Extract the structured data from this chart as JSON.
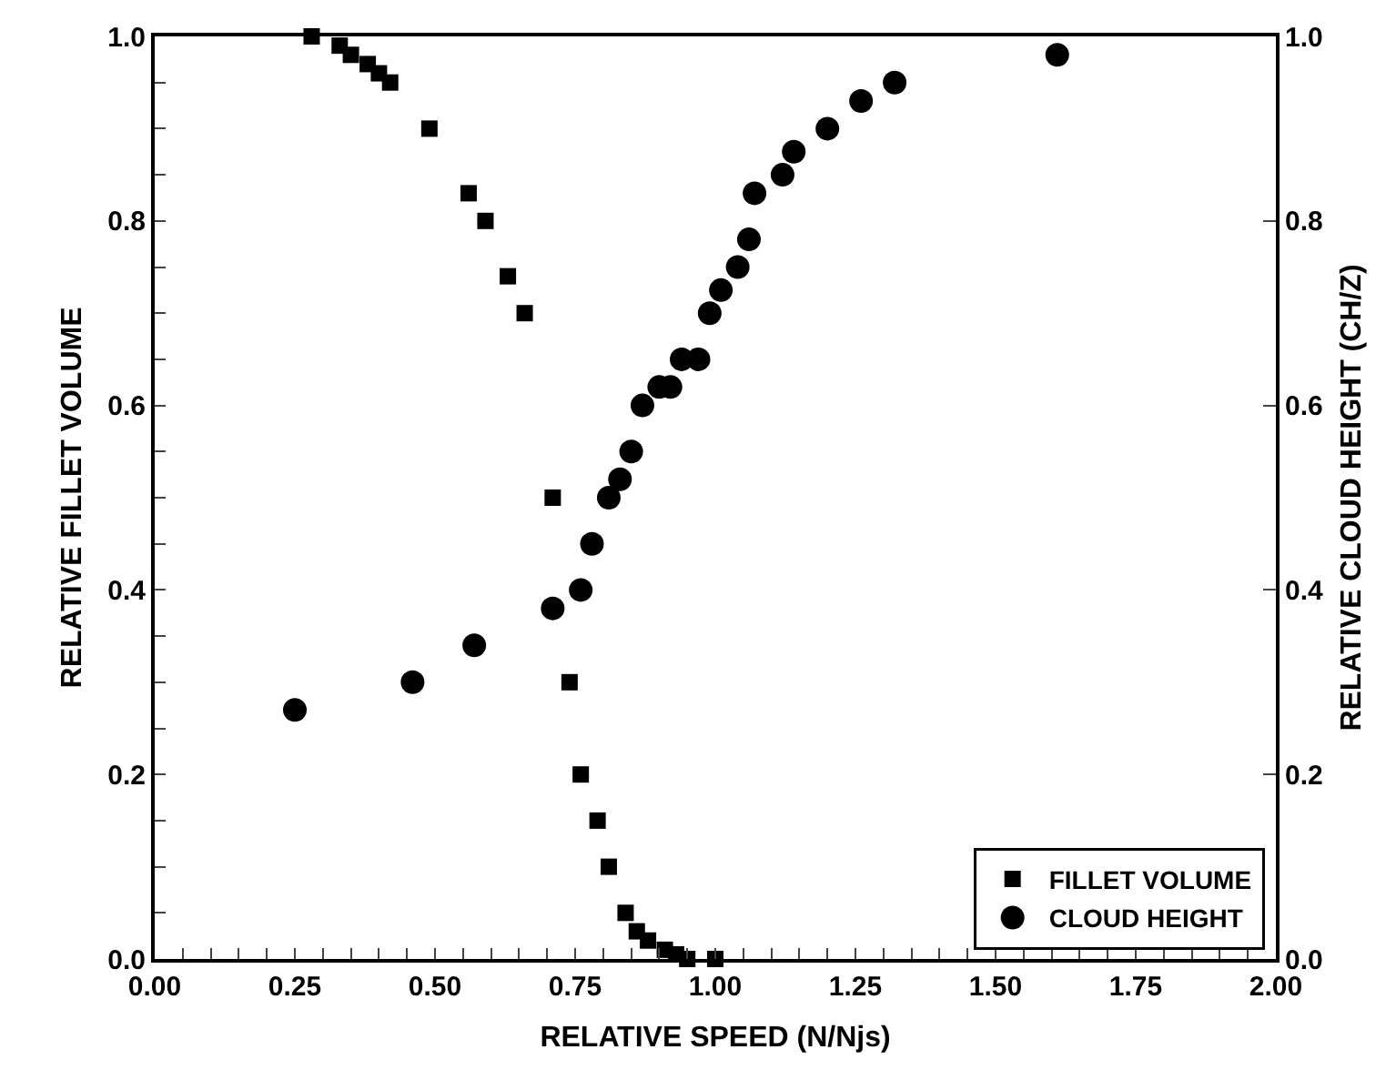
{
  "chart_data": {
    "type": "scatter",
    "xlabel": "RELATIVE SPEED (N/Njs)",
    "ylabel": "RELATIVE FILLET VOLUME",
    "y2label": "RELATIVE CLOUD HEIGHT (CH/Z)",
    "xlim": [
      0,
      2
    ],
    "ylim": [
      0,
      1
    ],
    "y2lim": [
      0,
      1
    ],
    "xticks": [
      {
        "value": 0,
        "label": "0.00"
      },
      {
        "value": 0.05,
        "label": null
      },
      {
        "value": 0.1,
        "label": null
      },
      {
        "value": 0.15,
        "label": null
      },
      {
        "value": 0.2,
        "label": null
      },
      {
        "value": 0.25,
        "label": "0.25"
      },
      {
        "value": 0.3,
        "label": null
      },
      {
        "value": 0.35,
        "label": null
      },
      {
        "value": 0.4,
        "label": null
      },
      {
        "value": 0.45,
        "label": null
      },
      {
        "value": 0.5,
        "label": "0.50"
      },
      {
        "value": 0.55,
        "label": null
      },
      {
        "value": 0.6,
        "label": null
      },
      {
        "value": 0.65,
        "label": null
      },
      {
        "value": 0.7,
        "label": null
      },
      {
        "value": 0.75,
        "label": "0.75"
      },
      {
        "value": 0.8,
        "label": null
      },
      {
        "value": 0.85,
        "label": null
      },
      {
        "value": 0.9,
        "label": null
      },
      {
        "value": 0.95,
        "label": null
      },
      {
        "value": 1,
        "label": "1.00"
      },
      {
        "value": 1.05,
        "label": null
      },
      {
        "value": 1.1,
        "label": null
      },
      {
        "value": 1.15,
        "label": null
      },
      {
        "value": 1.2,
        "label": null
      },
      {
        "value": 1.25,
        "label": "1.25"
      },
      {
        "value": 1.3,
        "label": null
      },
      {
        "value": 1.35,
        "label": null
      },
      {
        "value": 1.4,
        "label": null
      },
      {
        "value": 1.45,
        "label": null
      },
      {
        "value": 1.5,
        "label": "1.50"
      },
      {
        "value": 1.55,
        "label": null
      },
      {
        "value": 1.6,
        "label": null
      },
      {
        "value": 1.65,
        "label": null
      },
      {
        "value": 1.7,
        "label": null
      },
      {
        "value": 1.75,
        "label": "1.75"
      },
      {
        "value": 1.8,
        "label": null
      },
      {
        "value": 1.85,
        "label": null
      },
      {
        "value": 1.9,
        "label": null
      },
      {
        "value": 1.95,
        "label": null
      },
      {
        "value": 2,
        "label": "2.00"
      }
    ],
    "yticks": [
      {
        "value": 0,
        "label": "0.0"
      },
      {
        "value": 0.05,
        "label": null
      },
      {
        "value": 0.1,
        "label": null
      },
      {
        "value": 0.15,
        "label": null
      },
      {
        "value": 0.2,
        "label": "0.2"
      },
      {
        "value": 0.25,
        "label": null
      },
      {
        "value": 0.3,
        "label": null
      },
      {
        "value": 0.35,
        "label": null
      },
      {
        "value": 0.4,
        "label": "0.4"
      },
      {
        "value": 0.45,
        "label": null
      },
      {
        "value": 0.5,
        "label": null
      },
      {
        "value": 0.55,
        "label": null
      },
      {
        "value": 0.6,
        "label": "0.6"
      },
      {
        "value": 0.65,
        "label": null
      },
      {
        "value": 0.7,
        "label": null
      },
      {
        "value": 0.75,
        "label": null
      },
      {
        "value": 0.8,
        "label": "0.8"
      },
      {
        "value": 0.85,
        "label": null
      },
      {
        "value": 0.9,
        "label": null
      },
      {
        "value": 0.95,
        "label": null
      },
      {
        "value": 1,
        "label": "1.0"
      }
    ],
    "y2ticks": [
      {
        "value": 0,
        "label": "0.0"
      },
      {
        "value": 0.2,
        "label": "0.2"
      },
      {
        "value": 0.4,
        "label": "0.4"
      },
      {
        "value": 0.6,
        "label": "0.6"
      },
      {
        "value": 0.8,
        "label": "0.8"
      },
      {
        "value": 1,
        "label": "1.0"
      }
    ],
    "grid": false,
    "legend": "bottom right",
    "series": [
      {
        "name": "FILLET VOLUME",
        "color": "#000000",
        "marker": "square",
        "x": [
          0.28,
          0.33,
          0.35,
          0.38,
          0.4,
          0.42,
          0.49,
          0.56,
          0.59,
          0.63,
          0.66,
          0.71,
          0.74,
          0.76,
          0.79,
          0.81,
          0.84,
          0.86,
          0.88,
          0.91,
          0.93,
          0.95,
          1.0
        ],
        "values": [
          1.0,
          0.99,
          0.98,
          0.97,
          0.96,
          0.95,
          0.9,
          0.83,
          0.8,
          0.74,
          0.7,
          0.5,
          0.3,
          0.2,
          0.15,
          0.1,
          0.05,
          0.03,
          0.02,
          0.01,
          0.005,
          0.0,
          0.0
        ]
      },
      {
        "name": "CLOUD HEIGHT",
        "color": "#000000",
        "marker": "circle",
        "axis": "y2",
        "x": [
          0.25,
          0.46,
          0.57,
          0.71,
          0.76,
          0.78,
          0.81,
          0.83,
          0.85,
          0.87,
          0.9,
          0.92,
          0.94,
          0.97,
          0.99,
          1.01,
          1.04,
          1.06,
          1.07,
          1.12,
          1.14,
          1.2,
          1.26,
          1.32,
          1.61
        ],
        "values": [
          0.27,
          0.3,
          0.34,
          0.38,
          0.4,
          0.45,
          0.5,
          0.52,
          0.55,
          0.6,
          0.62,
          0.62,
          0.65,
          0.65,
          0.7,
          0.725,
          0.75,
          0.78,
          0.83,
          0.85,
          0.875,
          0.9,
          0.93,
          0.95,
          0.98
        ]
      }
    ]
  }
}
